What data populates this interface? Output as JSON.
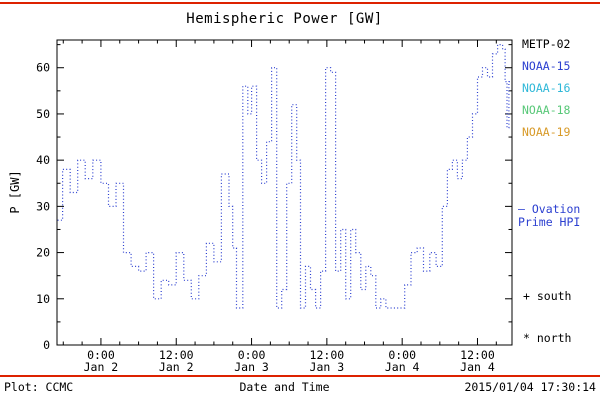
{
  "page": {
    "title": "Hemispheric Power [GW]",
    "rule_color": "#dd2200",
    "footer": {
      "left": "Plot: CCMC",
      "right": "2015/01/04 17:30:14"
    }
  },
  "legend": {
    "satellites": [
      {
        "label": "METP-02",
        "color": "#000000"
      },
      {
        "label": "NOAA-15",
        "color": "#2b3fd0"
      },
      {
        "label": "NOAA-16",
        "color": "#2fb8d8"
      },
      {
        "label": "NOAA-18",
        "color": "#58c878"
      },
      {
        "label": "NOAA-19",
        "color": "#d89a28"
      }
    ],
    "ovation_label": {
      "line1": "– Ovation",
      "line2": "Prime HPI",
      "color": "#2b3fd0"
    },
    "markers": [
      {
        "symbol": "+",
        "label": "south"
      },
      {
        "symbol": "*",
        "label": "north"
      }
    ]
  },
  "chart_data": {
    "type": "line",
    "subtype": "step-dotted",
    "title": "Hemispheric Power [GW]",
    "xlabel": "Date and Time",
    "ylabel": "P [GW]",
    "series_color": "#2b3fd0",
    "ylim": [
      0,
      66
    ],
    "yticks": [
      0,
      10,
      20,
      30,
      40,
      50,
      60
    ],
    "x_axis_note": "hours relative to 2015-01-02 00:00",
    "xlim": [
      -7,
      65.5
    ],
    "xticks": [
      {
        "t": 0,
        "time": "0:00",
        "date": "Jan 2"
      },
      {
        "t": 12,
        "time": "12:00",
        "date": "Jan 2"
      },
      {
        "t": 24,
        "time": "0:00",
        "date": "Jan 3"
      },
      {
        "t": 36,
        "time": "12:00",
        "date": "Jan 3"
      },
      {
        "t": 48,
        "time": "0:00",
        "date": "Jan 4"
      },
      {
        "t": 60,
        "time": "12:00",
        "date": "Jan 4"
      }
    ],
    "points": [
      [
        -6.9,
        27
      ],
      [
        -6.1,
        38
      ],
      [
        -4.9,
        33
      ],
      [
        -3.7,
        40
      ],
      [
        -2.5,
        36
      ],
      [
        -1.3,
        40
      ],
      [
        0,
        35
      ],
      [
        1.2,
        30
      ],
      [
        2.4,
        35
      ],
      [
        3.6,
        20
      ],
      [
        4.8,
        17
      ],
      [
        6,
        16
      ],
      [
        7.2,
        20
      ],
      [
        8.4,
        10
      ],
      [
        9.6,
        14
      ],
      [
        10.8,
        13
      ],
      [
        12,
        20
      ],
      [
        13.2,
        14
      ],
      [
        14.4,
        10
      ],
      [
        15.6,
        15
      ],
      [
        16.8,
        22
      ],
      [
        18,
        18
      ],
      [
        19.2,
        37
      ],
      [
        20.4,
        30
      ],
      [
        21,
        21
      ],
      [
        21.6,
        8
      ],
      [
        22.6,
        56
      ],
      [
        23.4,
        50
      ],
      [
        24,
        56
      ],
      [
        24.8,
        40
      ],
      [
        25.6,
        35
      ],
      [
        26.4,
        44
      ],
      [
        27.2,
        60
      ],
      [
        28,
        8
      ],
      [
        28.8,
        12
      ],
      [
        29.6,
        35
      ],
      [
        30.4,
        52
      ],
      [
        31.2,
        40
      ],
      [
        31.8,
        8
      ],
      [
        32.6,
        17
      ],
      [
        33.4,
        12
      ],
      [
        34.2,
        8
      ],
      [
        35,
        16
      ],
      [
        35.8,
        60
      ],
      [
        36.6,
        59
      ],
      [
        37.4,
        16
      ],
      [
        38.2,
        25
      ],
      [
        39,
        10
      ],
      [
        39.8,
        25
      ],
      [
        40.6,
        20
      ],
      [
        41.4,
        12
      ],
      [
        42.2,
        17
      ],
      [
        43,
        15
      ],
      [
        43.8,
        8
      ],
      [
        44.6,
        10
      ],
      [
        45.4,
        8
      ],
      [
        46.4,
        8
      ],
      [
        47.4,
        8
      ],
      [
        48.4,
        13
      ],
      [
        49.4,
        20
      ],
      [
        50.4,
        21
      ],
      [
        51.4,
        16
      ],
      [
        52.4,
        20
      ],
      [
        53.4,
        17
      ],
      [
        54.4,
        30
      ],
      [
        55.2,
        38
      ],
      [
        56,
        40
      ],
      [
        56.8,
        36
      ],
      [
        57.6,
        40
      ],
      [
        58.4,
        45
      ],
      [
        59.2,
        50
      ],
      [
        60,
        58
      ],
      [
        60.8,
        60
      ],
      [
        61.6,
        58
      ],
      [
        62.4,
        63
      ],
      [
        63.2,
        65
      ],
      [
        64,
        64
      ],
      [
        64.4,
        57
      ],
      [
        64.7,
        47
      ],
      [
        65,
        57
      ]
    ]
  }
}
